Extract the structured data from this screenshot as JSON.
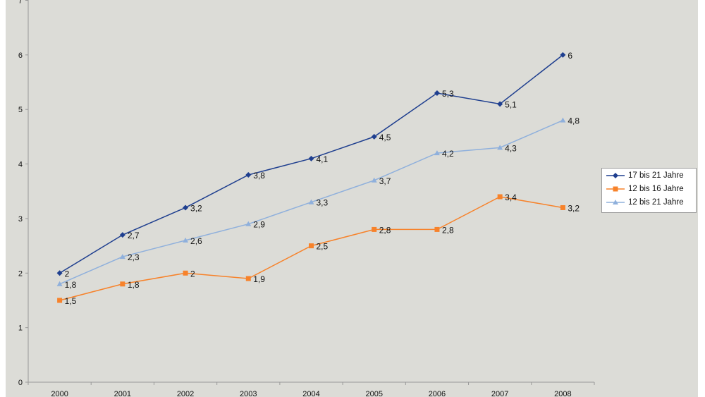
{
  "chart_data": {
    "type": "line",
    "title": "",
    "xlabel": "",
    "ylabel": "",
    "categories": [
      "2000",
      "2001",
      "2002",
      "2003",
      "2004",
      "2005",
      "2006",
      "2007",
      "2008"
    ],
    "ylim": [
      0,
      7
    ],
    "yticks": [
      "0",
      "1",
      "2",
      "3",
      "4",
      "5",
      "6",
      "7"
    ],
    "grid": false,
    "legend_position": "right",
    "series": [
      {
        "name": "17 bis 21 Jahre",
        "color": "#1f3f8f",
        "marker": "diamond",
        "values": [
          2,
          2.7,
          3.2,
          3.8,
          4.1,
          4.5,
          5.3,
          5.1,
          6
        ],
        "labels": [
          "2",
          "2,7",
          "3,2",
          "3,8",
          "4,1",
          "4,5",
          "5,3",
          "5,1",
          "6"
        ]
      },
      {
        "name": "12 bis 16 Jahre",
        "color": "#f7822a",
        "marker": "square",
        "values": [
          1.5,
          1.8,
          2,
          1.9,
          2.5,
          2.8,
          2.8,
          3.4,
          3.2
        ],
        "labels": [
          "1,5",
          "1,8",
          "2",
          "1,9",
          "2,5",
          "2,8",
          "2,8",
          "3,4",
          "3,2"
        ]
      },
      {
        "name": "12 bis 21 Jahre",
        "color": "#8fb0dc",
        "marker": "triangle",
        "values": [
          1.8,
          2.3,
          2.6,
          2.9,
          3.3,
          3.7,
          4.2,
          4.3,
          4.8
        ],
        "labels": [
          "1,8",
          "2,3",
          "2,6",
          "2,9",
          "3,3",
          "3,7",
          "4,2",
          "4,3",
          "4,8"
        ]
      }
    ]
  }
}
